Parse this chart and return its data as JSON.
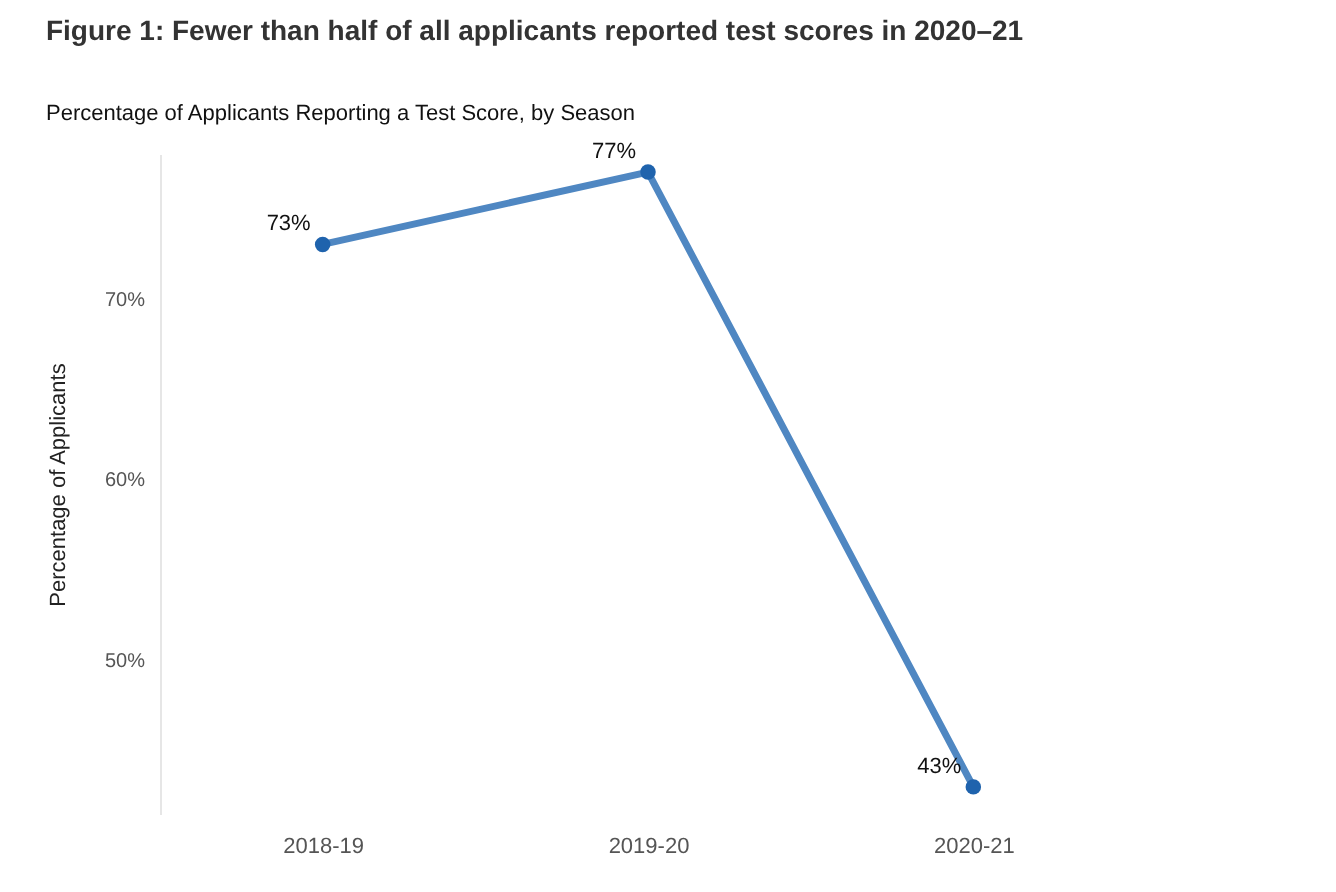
{
  "chart_data": {
    "type": "line",
    "title": "Figure 1: Fewer than half of all applicants reported test scores in 2020–21",
    "subtitle": "Percentage of Applicants Reporting a Test Score, by Season",
    "ylabel": "Percentage of Applicants",
    "categories": [
      "2018-19",
      "2019-20",
      "2020-21"
    ],
    "series": [
      {
        "color": "#4f87c2",
        "values": [
          73,
          77,
          43
        ],
        "value_labels": [
          "73%",
          "77%",
          "43%"
        ]
      }
    ],
    "ylim": [
      41.5,
      78
    ],
    "yticks": [
      {
        "value": 50,
        "label": "50%"
      },
      {
        "value": 60,
        "label": "60%"
      },
      {
        "value": 70,
        "label": "70%"
      }
    ],
    "grid": false,
    "legend": false,
    "marker": "circle",
    "line_style": "solid"
  }
}
